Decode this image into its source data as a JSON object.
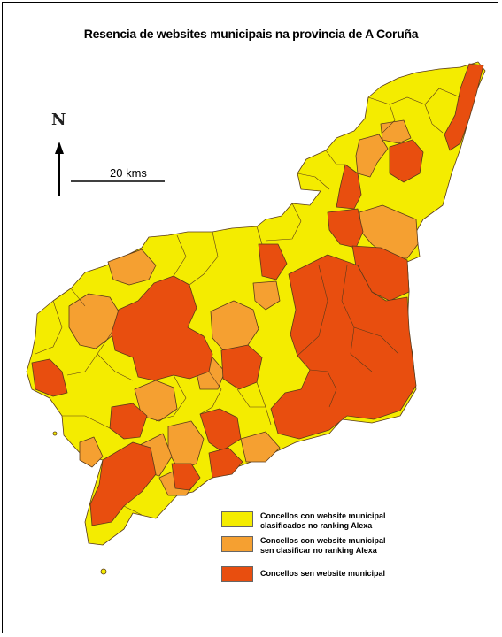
{
  "title": "Resencia de websites municipais na provincia de A Coruña",
  "north_label": "N",
  "scale_label": "20 kms",
  "colors": {
    "yellow": "#f4ec00",
    "orange_light": "#f5a031",
    "red": "#e84e0f",
    "border": "#5a3a1a"
  },
  "legend": [
    {
      "color": "#f4ec00",
      "line1": "Concellos con website municipal",
      "line2": "clasificados no ranking Alexa"
    },
    {
      "color": "#f5a031",
      "line1": "Concellos con website municipal",
      "line2": "sen clasificar no ranking Alexa"
    },
    {
      "color": "#e84e0f",
      "line1": "Concellos sen website municipal",
      "line2": ""
    }
  ]
}
